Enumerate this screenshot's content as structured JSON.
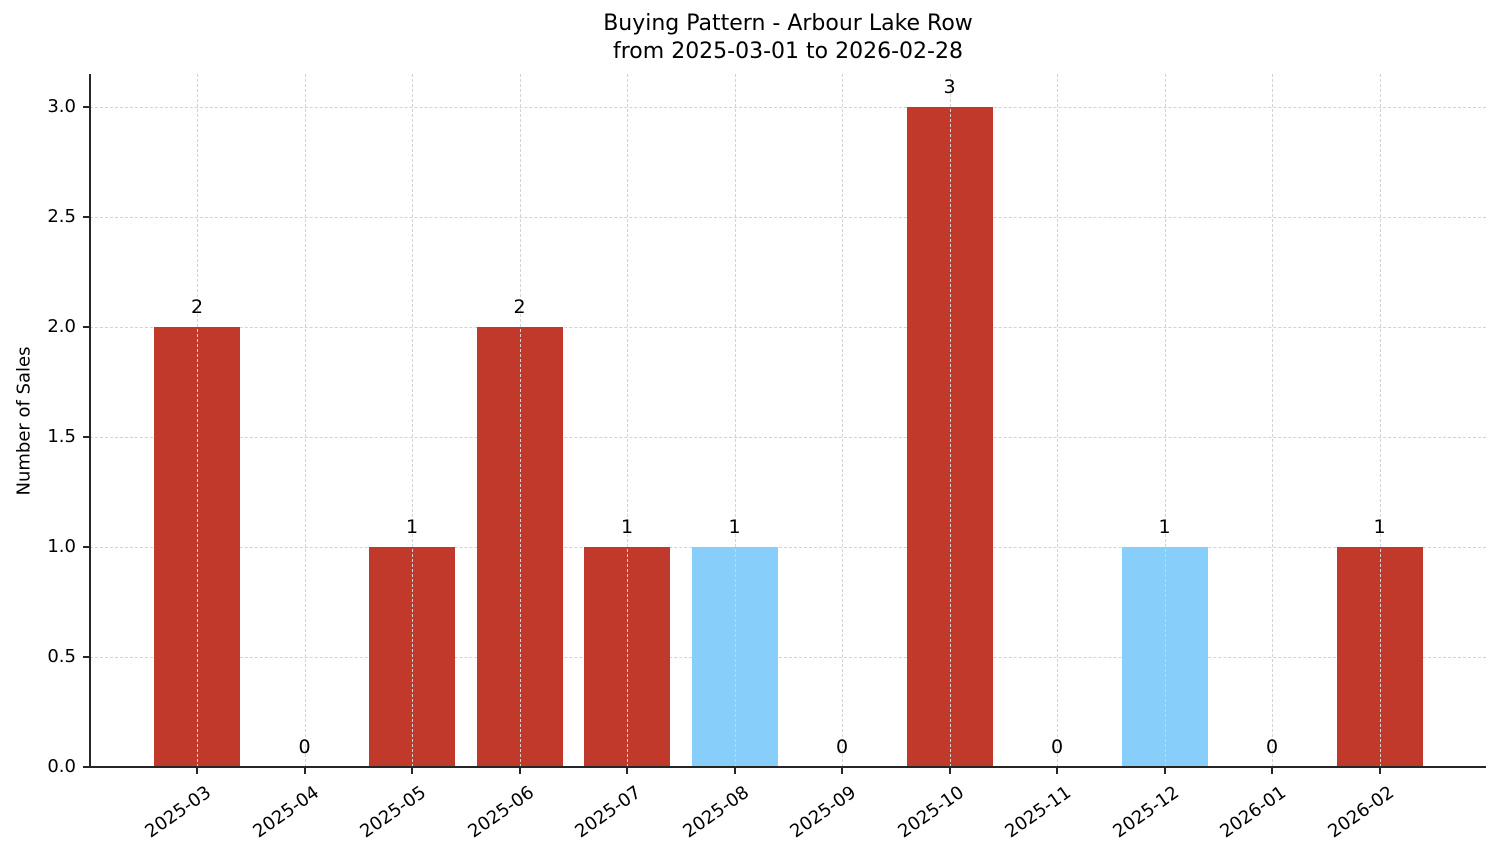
{
  "chart_data": {
    "type": "bar",
    "title": "Buying Pattern - Arbour Lake Row",
    "subtitle": "from 2025-03-01 to 2026-02-28",
    "xlabel": "",
    "ylabel": "Number of Sales",
    "categories": [
      "2025-03",
      "2025-04",
      "2025-05",
      "2025-06",
      "2025-07",
      "2025-08",
      "2025-09",
      "2025-10",
      "2025-11",
      "2025-12",
      "2026-01",
      "2026-02"
    ],
    "values": [
      2,
      0,
      1,
      2,
      1,
      1,
      0,
      3,
      0,
      1,
      0,
      1
    ],
    "bar_colors": [
      "#c0392b",
      "#c0392b",
      "#c0392b",
      "#c0392b",
      "#c0392b",
      "#87cefa",
      "#c0392b",
      "#c0392b",
      "#c0392b",
      "#87cefa",
      "#c0392b",
      "#c0392b"
    ],
    "data_labels": [
      "2",
      "0",
      "1",
      "2",
      "1",
      "1",
      "0",
      "3",
      "0",
      "1",
      "0",
      "1"
    ],
    "ylim": [
      0,
      3.15
    ],
    "yticks": [
      "0.0",
      "0.5",
      "1.0",
      "1.5",
      "2.0",
      "2.5",
      "3.0"
    ],
    "grid": true,
    "legend": null
  },
  "colors": {
    "primary": "#c0392b",
    "highlight": "#87cefa",
    "grid": "#d3d3d3",
    "axis": "#262626"
  }
}
